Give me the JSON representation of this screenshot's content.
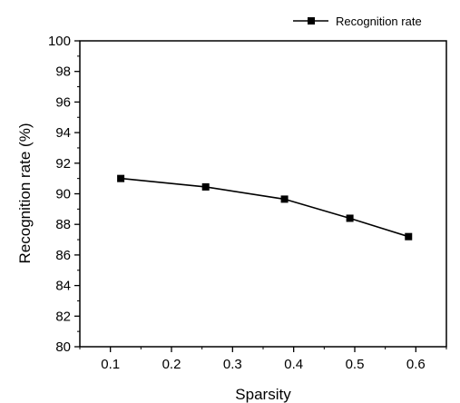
{
  "chart_data": {
    "type": "line",
    "xlabel": "Sparsity",
    "ylabel": "Recognition rate (%)",
    "xlim": [
      0.05,
      0.65
    ],
    "ylim": [
      80,
      100
    ],
    "x_ticks": [
      0.1,
      0.2,
      0.3,
      0.4,
      0.5,
      0.6
    ],
    "y_ticks": [
      80,
      82,
      84,
      86,
      88,
      90,
      92,
      94,
      96,
      98,
      100
    ],
    "grid": false,
    "legend_position": "top-right",
    "series": [
      {
        "name": "Recognition rate",
        "color": "#000000",
        "marker": "square",
        "x": [
          0.117,
          0.256,
          0.385,
          0.492,
          0.588
        ],
        "y": [
          91.0,
          90.45,
          89.65,
          88.4,
          87.2
        ]
      }
    ]
  }
}
